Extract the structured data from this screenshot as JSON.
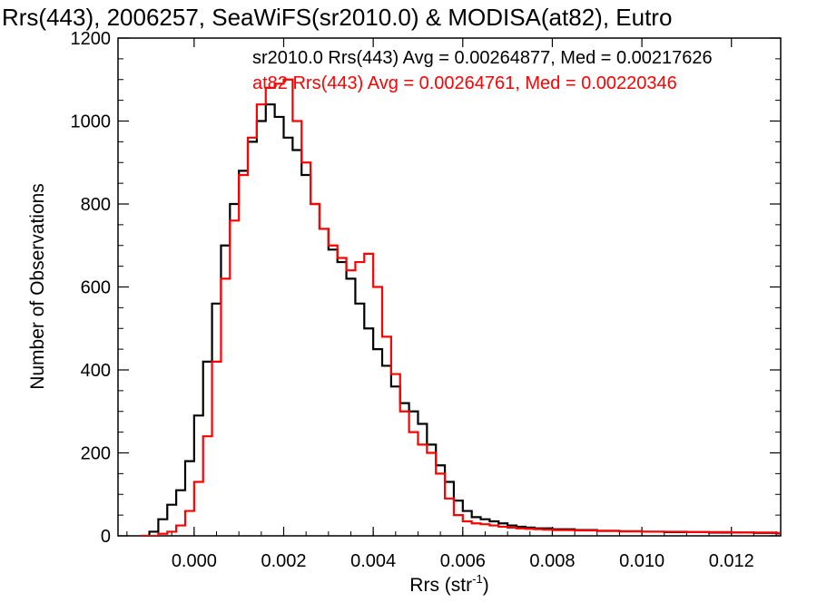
{
  "chart_data": {
    "type": "line",
    "style": "step-histogram",
    "title": "Rrs(443), 2006257, SeaWiFS(sr2010.0) & MODISA(at82), Eutro",
    "xlabel_base": "Rrs (str",
    "xlabel_sup": "-1",
    "xlabel_close": ")",
    "ylabel": "Number of Observations",
    "xlim": [
      -0.0017,
      0.0131
    ],
    "ylim": [
      0,
      1200
    ],
    "x_ticks": [
      0.0,
      0.002,
      0.004,
      0.006,
      0.008,
      0.01,
      0.012
    ],
    "x_tick_labels": [
      "0.000",
      "0.002",
      "0.004",
      "0.006",
      "0.008",
      "0.010",
      "0.012"
    ],
    "y_ticks": [
      0,
      200,
      400,
      600,
      800,
      1000,
      1200
    ],
    "y_tick_labels": [
      "0",
      "200",
      "400",
      "600",
      "800",
      "1000",
      "1200"
    ],
    "grid": false,
    "legend_position": "top-right",
    "series": [
      {
        "name": "sr2010.0 Rrs(443) Avg = 0.00264877, Med = 0.00217626",
        "color": "#000000",
        "x": [
          -0.0012,
          -0.001,
          -0.0008,
          -0.0006,
          -0.0004,
          -0.0002,
          0.0,
          0.0002,
          0.0004,
          0.0006,
          0.0008,
          0.001,
          0.0012,
          0.0014,
          0.0016,
          0.0018,
          0.002,
          0.0022,
          0.0024,
          0.0026,
          0.0028,
          0.003,
          0.0032,
          0.0034,
          0.0036,
          0.0038,
          0.004,
          0.0042,
          0.0044,
          0.0046,
          0.0048,
          0.005,
          0.0052,
          0.0054,
          0.0056,
          0.0058,
          0.006,
          0.0062,
          0.0064,
          0.0066,
          0.0068,
          0.007,
          0.0072,
          0.0074,
          0.0076,
          0.0078,
          0.008,
          0.0085,
          0.009,
          0.0095,
          0.01,
          0.0105,
          0.011,
          0.0115,
          0.012,
          0.0125,
          0.013
        ],
        "values": [
          0,
          10,
          40,
          75,
          110,
          180,
          290,
          420,
          560,
          700,
          800,
          880,
          950,
          1000,
          1040,
          1010,
          960,
          930,
          870,
          800,
          740,
          690,
          660,
          620,
          560,
          500,
          450,
          410,
          360,
          320,
          300,
          270,
          220,
          170,
          130,
          85,
          60,
          45,
          40,
          35,
          30,
          25,
          22,
          20,
          18,
          18,
          16,
          14,
          12,
          11,
          10,
          9,
          9,
          8,
          8,
          7,
          6
        ]
      },
      {
        "name": "at82 Rrs(443) Avg = 0.00264761, Med = 0.00220346",
        "color": "#ff0000",
        "x": [
          -0.0012,
          -0.001,
          -0.0008,
          -0.0006,
          -0.0004,
          -0.0002,
          0.0,
          0.0002,
          0.0004,
          0.0006,
          0.0008,
          0.001,
          0.0012,
          0.0014,
          0.0016,
          0.0018,
          0.002,
          0.0022,
          0.0024,
          0.0026,
          0.0028,
          0.003,
          0.0032,
          0.0034,
          0.0036,
          0.0038,
          0.004,
          0.0042,
          0.0044,
          0.0046,
          0.0048,
          0.005,
          0.0052,
          0.0054,
          0.0056,
          0.0058,
          0.006,
          0.0062,
          0.0064,
          0.0066,
          0.0068,
          0.007,
          0.0072,
          0.0074,
          0.0076,
          0.0078,
          0.008,
          0.0085,
          0.009,
          0.0095,
          0.01,
          0.0105,
          0.011,
          0.0115,
          0.012,
          0.0125,
          0.013
        ],
        "values": [
          0,
          0,
          5,
          10,
          25,
          60,
          130,
          240,
          420,
          620,
          760,
          870,
          960,
          1040,
          1080,
          1090,
          1100,
          1000,
          900,
          800,
          740,
          700,
          670,
          640,
          660,
          680,
          600,
          480,
          390,
          300,
          250,
          220,
          200,
          150,
          90,
          50,
          35,
          30,
          28,
          25,
          22,
          20,
          18,
          17,
          16,
          15,
          14,
          13,
          12,
          11,
          10,
          10,
          9,
          9,
          8,
          8,
          7
        ]
      }
    ]
  }
}
